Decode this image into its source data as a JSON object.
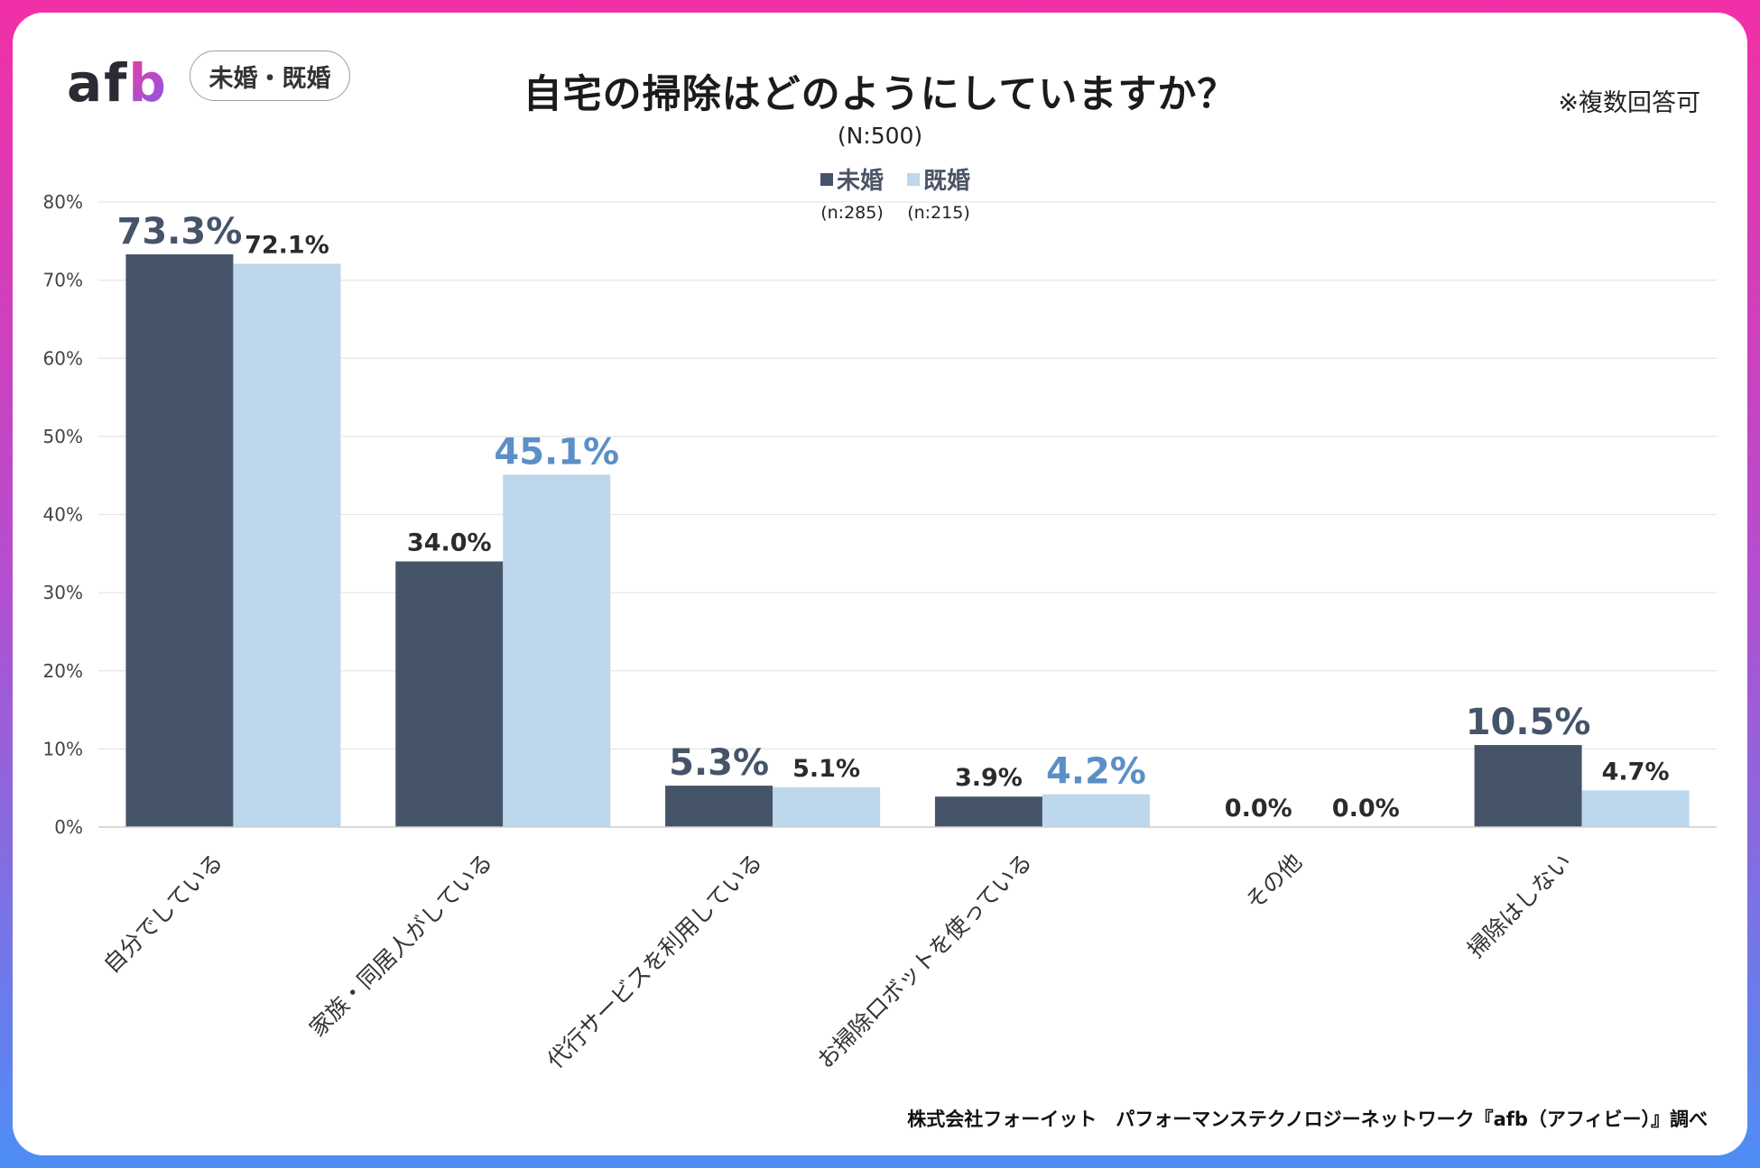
{
  "header": {
    "logo_text": "af",
    "logo_accent": "b",
    "tag": "未婚・既婚",
    "title": "自宅の掃除はどのようにしていますか？",
    "subtitle": "(N:500)",
    "note": "※複数回答可"
  },
  "footer": "株式会社フォーイット　パフォーマンステクノロジーネットワーク『afb（アフィビー）』調べ",
  "colors": {
    "unmarried": "#46546a",
    "married": "#bdd7ec",
    "highlight_married": "#5b8fc6",
    "highlight_unmarried": "#46546a",
    "label": "#2b2b2b",
    "grid": "#e6e6e6"
  },
  "chart_data": {
    "type": "bar",
    "title": "自宅の掃除はどのようにしていますか？",
    "subtitle": "(N:500)",
    "categories": [
      "自分でしている",
      "家族・同居人がしている",
      "代行サービスを利用している",
      "お掃除ロボットを使っている",
      "その他",
      "掃除はしない"
    ],
    "series": [
      {
        "name": "未婚",
        "n": "(n:285)",
        "values": [
          73.3,
          34.0,
          5.3,
          3.9,
          0.0,
          10.5
        ],
        "labels": [
          "73.3%",
          "34.0%",
          "5.3%",
          "3.9%",
          "0.0%",
          "10.5%"
        ],
        "highlight": [
          true,
          false,
          true,
          false,
          false,
          true
        ]
      },
      {
        "name": "既婚",
        "n": "(n:215)",
        "values": [
          72.1,
          45.1,
          5.1,
          4.2,
          0.0,
          4.7
        ],
        "labels": [
          "72.1%",
          "45.1%",
          "5.1%",
          "4.2%",
          "0.0%",
          "4.7%"
        ],
        "highlight": [
          false,
          true,
          false,
          true,
          false,
          false
        ]
      }
    ],
    "yticks": [
      "0%",
      "10%",
      "20%",
      "30%",
      "40%",
      "50%",
      "60%",
      "70%",
      "80%"
    ],
    "ylim": [
      0,
      80
    ],
    "xlabel": "",
    "ylabel": "",
    "legend": "top-center"
  }
}
